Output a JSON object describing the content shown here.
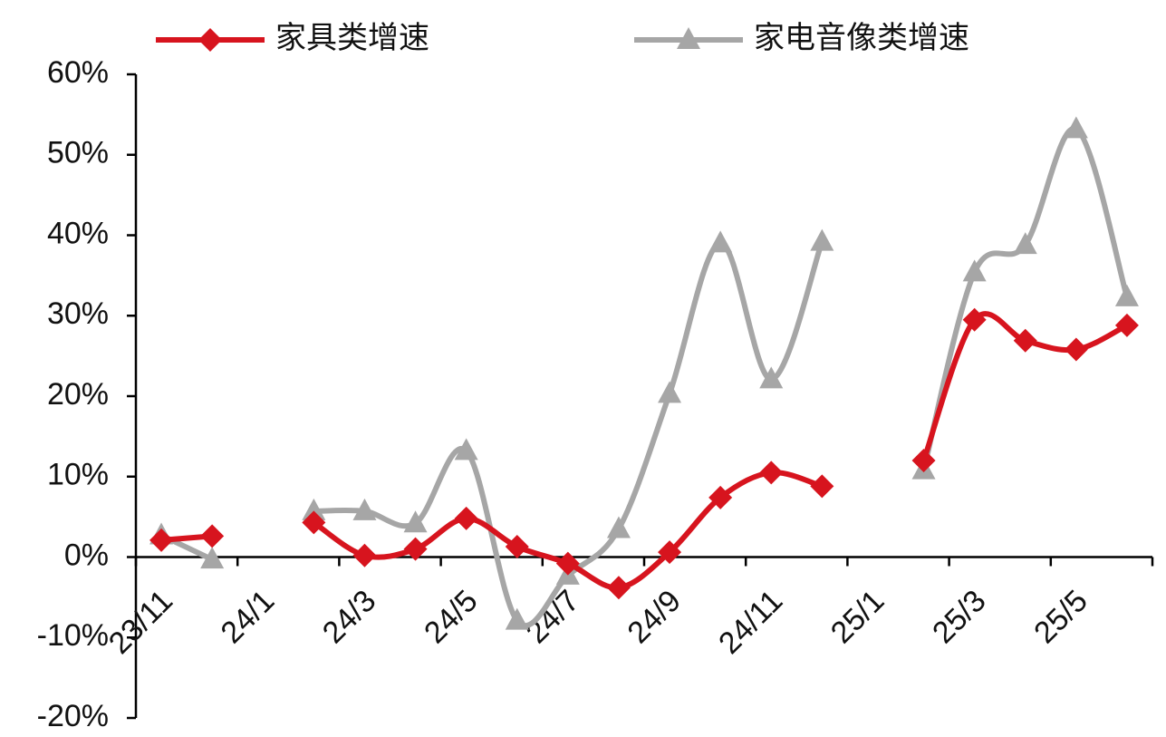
{
  "chart_data": {
    "type": "line",
    "categories": [
      "23/11",
      null,
      "24/1",
      null,
      "24/3",
      null,
      "24/5",
      null,
      "24/7",
      null,
      "24/9",
      null,
      "24/11",
      null,
      "25/1",
      null,
      "25/3",
      null,
      "25/5",
      null
    ],
    "series": [
      {
        "name": "家具类增速",
        "color": "#d7141e",
        "marker": "diamond",
        "values": [
          2.1,
          2.6,
          null,
          4.3,
          0.2,
          1.0,
          4.8,
          1.3,
          -0.8,
          -3.8,
          0.6,
          7.4,
          10.5,
          8.8,
          null,
          12.0,
          29.5,
          26.9,
          25.8,
          28.8
        ]
      },
      {
        "name": "家电音像类增速",
        "color": "#a6a6a6",
        "marker": "triangle",
        "values": [
          2.7,
          -0.3,
          null,
          5.7,
          5.7,
          4.2,
          13.2,
          -7.9,
          -2.3,
          3.5,
          20.3,
          39.0,
          22.1,
          39.2,
          null,
          10.8,
          35.4,
          38.8,
          53.2,
          32.3
        ]
      }
    ],
    "ylim": [
      -20,
      60
    ],
    "yticks": [
      {
        "value": -20,
        "label": "-20%"
      },
      {
        "value": -10,
        "label": "-10%"
      },
      {
        "value": 0,
        "label": "0%"
      },
      {
        "value": 10,
        "label": "10%"
      },
      {
        "value": 20,
        "label": "20%"
      },
      {
        "value": 30,
        "label": "30%"
      },
      {
        "value": 40,
        "label": "40%"
      },
      {
        "value": 50,
        "label": "50%"
      },
      {
        "value": 60,
        "label": "60%"
      }
    ],
    "legend": "top"
  }
}
